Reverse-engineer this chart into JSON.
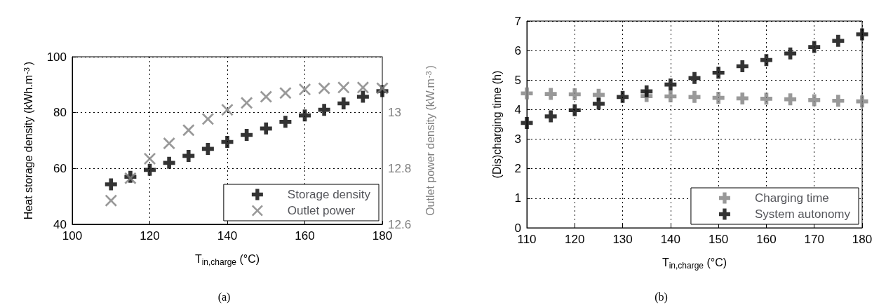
{
  "chart_data": [
    {
      "type": "scatter",
      "annotations": [
        "(a)"
      ],
      "xlabel": "T$_{in,charge}$ (°C)",
      "ylabel": "Heat storage density (kWh.m$^{-3}$)",
      "y2label": "Outlet power density (kW.m$^{-3}$)",
      "x": [
        110,
        115,
        120,
        125,
        130,
        135,
        140,
        145,
        150,
        155,
        160,
        165,
        170,
        175,
        180
      ],
      "xlim": [
        100,
        180
      ],
      "xticks": [
        100,
        120,
        140,
        160,
        180
      ],
      "ylim": [
        40,
        100
      ],
      "yticks": [
        40,
        60,
        80,
        100
      ],
      "y2lim": [
        12.6,
        13.2
      ],
      "y2ticks": [
        12.6,
        12.8,
        13
      ],
      "grid": true,
      "legend": "bottom right",
      "series": [
        {
          "name": "Storage density",
          "color": "#000000",
          "marker": "cross",
          "values": [
            54.3,
            57,
            59.5,
            62,
            64.5,
            67,
            69.5,
            72,
            74.3,
            76.7,
            79,
            81,
            83.3,
            85.7,
            87.7
          ]
        },
        {
          "name": "Outlet power",
          "color": "#808080",
          "marker": "x",
          "axis": "y2",
          "values": [
            12.685,
            12.765,
            12.835,
            12.89,
            12.937,
            12.977,
            13.01,
            13.035,
            13.057,
            13.07,
            13.083,
            13.087,
            13.09,
            13.09,
            13.087
          ]
        }
      ]
    },
    {
      "type": "scatter",
      "annotations": [
        "(b)"
      ],
      "xlabel": "T$_{in,charge}$ (°C)",
      "ylabel": "(Dis)charging time (h)",
      "x": [
        110,
        115,
        120,
        125,
        130,
        135,
        140,
        145,
        150,
        155,
        160,
        165,
        170,
        175,
        180
      ],
      "xlim": [
        110,
        180
      ],
      "xticks": [
        110,
        120,
        130,
        140,
        150,
        160,
        170,
        180
      ],
      "ylim": [
        0,
        7
      ],
      "yticks": [
        0,
        1,
        2,
        3,
        4,
        5,
        6,
        7
      ],
      "grid": true,
      "legend": "bottom right",
      "series": [
        {
          "name": "Charging time",
          "color": "#808080",
          "marker": "cross",
          "values": [
            4.55,
            4.53,
            4.52,
            4.5,
            null,
            4.46,
            4.45,
            4.43,
            4.4,
            4.38,
            4.37,
            4.35,
            4.32,
            4.3,
            4.28
          ]
        },
        {
          "name": "System autonomy",
          "color": "#000000",
          "marker": "cross",
          "values": [
            3.55,
            3.77,
            3.98,
            4.2,
            4.43,
            4.62,
            4.85,
            5.07,
            5.25,
            5.47,
            5.68,
            5.9,
            6.12,
            6.33,
            6.55
          ]
        }
      ]
    }
  ]
}
